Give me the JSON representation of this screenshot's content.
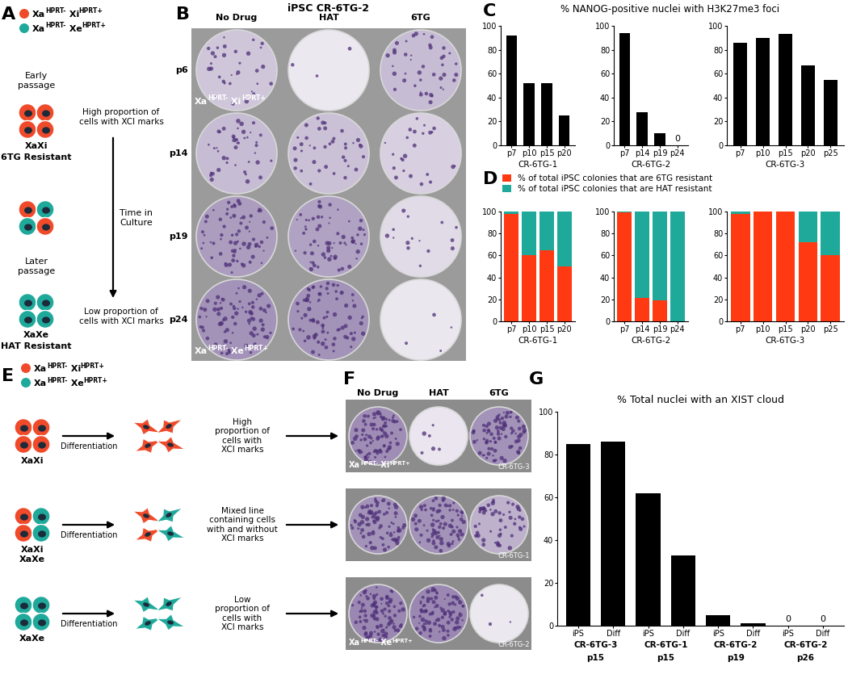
{
  "key": [
    {
      "color": "#EF4B2B",
      "genotype": [
        [
          "Xa",
          "HPRT-"
        ],
        [
          "Xi",
          "HPRT+"
        ]
      ]
    },
    {
      "color": "#1FA99B",
      "genotype": [
        [
          "Xa",
          "HPRT-"
        ],
        [
          "Xe",
          "HPRT+"
        ]
      ]
    }
  ],
  "panel_A": {
    "label": "A",
    "early": {
      "label": "Early\npassage",
      "note": "High proportion of\ncells with XCI marks",
      "state": "XaXi",
      "resistance": "6TG Resistant"
    },
    "arrow_label": "Time in\nCulture",
    "late": {
      "label": "Later\npassage",
      "note": "Low proportion of\ncells with XCI marks",
      "state": "XaXe",
      "resistance": "HAT Resistant"
    }
  },
  "panel_B": {
    "label": "B",
    "title": "iPSC CR-6TG-2",
    "columns": [
      "No Drug",
      "HAT",
      "6TG"
    ],
    "rows": [
      "p6",
      "p14",
      "p19",
      "p24"
    ],
    "well_labels": [
      {
        "row": 0,
        "key": 0
      },
      {
        "row": 3,
        "key": 1
      }
    ]
  },
  "panel_C": {
    "label": "C",
    "title": "% NANOG-positive nuclei with H3K27me3 foci"
  },
  "panel_D": {
    "label": "D"
  },
  "panel_E": {
    "label": "E",
    "arrow_label": "Differentiation",
    "rows": [
      {
        "states": [
          "XaXi"
        ],
        "key": [
          0
        ],
        "note": "High\nproportion of\ncells with\nXCI marks"
      },
      {
        "states": [
          "XaXi",
          "XaXe"
        ],
        "key": [
          0,
          1
        ],
        "note": "Mixed line\ncontaining cells\nwith and without\nXCI marks"
      },
      {
        "states": [
          "XaXe"
        ],
        "key": [
          1
        ],
        "note": "Low\nproportion of\ncells with\nXCI marks"
      }
    ]
  },
  "panel_F": {
    "label": "F",
    "columns": [
      "No Drug",
      "HAT",
      "6TG"
    ],
    "rows": [
      {
        "line": "CR-6TG-3",
        "key": 0
      },
      {
        "line": "CR-6TG-1",
        "key": null
      },
      {
        "line": "CR-6TG-2",
        "key": 1
      }
    ]
  },
  "panel_G": {
    "label": "G"
  },
  "chart_data": [
    {
      "type": "bar",
      "xlabel": "CR-6TG-1",
      "categories": [
        "p7",
        "p10",
        "p15",
        "p20"
      ],
      "values": [
        92,
        52,
        52,
        25
      ],
      "color": "#000000",
      "ylim": [
        0,
        100
      ],
      "yticks": [
        0,
        20,
        40,
        60,
        80,
        100
      ]
    },
    {
      "type": "bar",
      "xlabel": "CR-6TG-2",
      "categories": [
        "p7",
        "p14",
        "p19",
        "p24"
      ],
      "values": [
        94,
        28,
        10,
        0
      ],
      "value_labels": [
        null,
        null,
        null,
        "0"
      ],
      "data_labels": true,
      "color": "#000000",
      "ylim": [
        0,
        100
      ],
      "yticks": [
        0,
        20,
        40,
        60,
        80,
        100
      ]
    },
    {
      "type": "bar",
      "xlabel": "CR-6TG-3",
      "categories": [
        "p7",
        "p10",
        "p15",
        "p20",
        "p25"
      ],
      "values": [
        86,
        90,
        93,
        67,
        55
      ],
      "color": "#000000",
      "ylim": [
        0,
        100
      ],
      "yticks": [
        0,
        20,
        40,
        60,
        80,
        100
      ]
    },
    {
      "type": "bar",
      "stacked": true,
      "legend": "upper left",
      "xlabel": "CR-6TG-1",
      "categories": [
        "p7",
        "p10",
        "p15",
        "p20"
      ],
      "series": [
        {
          "name": "% of total iPSC colonies that are 6TG resistant",
          "color": "#FF3A12",
          "values": [
            98,
            60,
            65,
            50
          ]
        },
        {
          "name": "% of total iPSC colonies that are HAT resistant",
          "color": "#1FA99B",
          "values": [
            2,
            40,
            35,
            50
          ]
        }
      ],
      "ylim": [
        0,
        100
      ],
      "yticks": [
        0,
        20,
        40,
        60,
        80,
        100
      ]
    },
    {
      "type": "bar",
      "stacked": true,
      "xlabel": "CR-6TG-2",
      "categories": [
        "p7",
        "p14",
        "p19",
        "p24"
      ],
      "series": [
        {
          "name": "% of total iPSC colonies that are 6TG resistant",
          "color": "#FF3A12",
          "values": [
            99,
            21,
            19,
            0
          ]
        },
        {
          "name": "% of total iPSC colonies that are HAT resistant",
          "color": "#1FA99B",
          "values": [
            1,
            79,
            81,
            100
          ]
        }
      ],
      "ylim": [
        0,
        100
      ],
      "yticks": [
        0,
        20,
        40,
        60,
        80,
        100
      ]
    },
    {
      "type": "bar",
      "stacked": true,
      "xlabel": "CR-6TG-3",
      "categories": [
        "p7",
        "p10",
        "p15",
        "p20",
        "p25"
      ],
      "series": [
        {
          "name": "% of total iPSC colonies that are 6TG resistant",
          "color": "#FF3A12",
          "values": [
            98,
            100,
            100,
            72,
            60
          ]
        },
        {
          "name": "% of total iPSC colonies that are HAT resistant",
          "color": "#1FA99B",
          "values": [
            2,
            0,
            0,
            28,
            40
          ]
        }
      ],
      "ylim": [
        0,
        100
      ],
      "yticks": [
        0,
        20,
        40,
        60,
        80,
        100
      ]
    },
    {
      "type": "bar",
      "title": "% Total nuclei with an XIST cloud",
      "categories": [
        "iPS",
        "Diff",
        "iPS",
        "Diff",
        "iPS",
        "Diff",
        "iPS",
        "Diff"
      ],
      "groups": [
        {
          "name": "CR-6TG-3",
          "passage": "p15"
        },
        {
          "name": "CR-6TG-1",
          "passage": "p15"
        },
        {
          "name": "CR-6TG-2",
          "passage": "p19"
        },
        {
          "name": "CR-6TG-2",
          "passage": "p26"
        }
      ],
      "values": [
        85,
        86,
        62,
        33,
        5,
        1,
        0,
        0
      ],
      "value_labels": [
        null,
        null,
        null,
        null,
        null,
        null,
        "0",
        "0"
      ],
      "data_labels": true,
      "color": "#000000",
      "ylim": [
        0,
        100
      ],
      "yticks": [
        0,
        20,
        40,
        60,
        80,
        100
      ]
    }
  ]
}
